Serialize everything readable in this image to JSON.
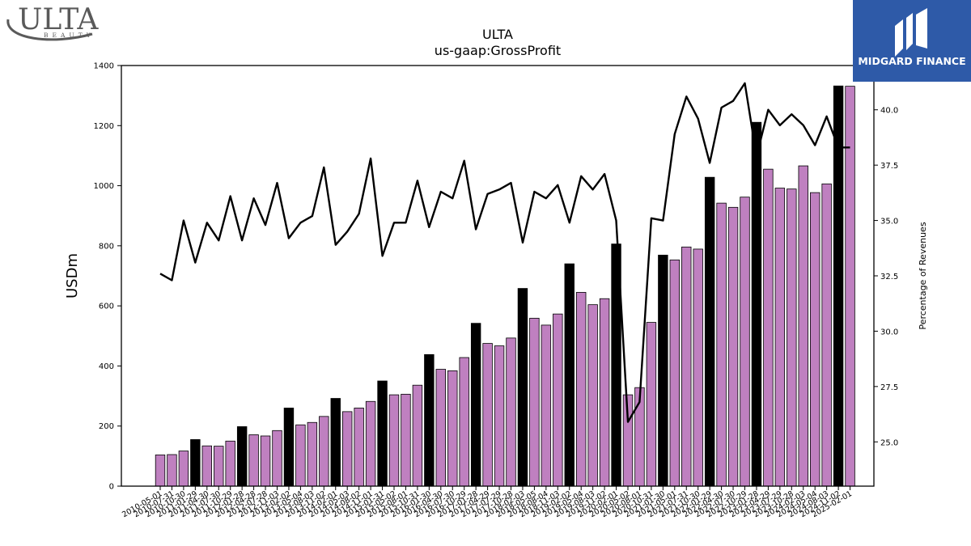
{
  "logos": {
    "left": {
      "brand": "ULTA",
      "sub": "BEAUTY",
      "color": "#5a5a5a"
    },
    "right": {
      "brand": "MIDGARD FINANCE",
      "bg": "#2e5aa8",
      "fg": "#ffffff"
    }
  },
  "chart_data": {
    "type": "bar",
    "title": "ULTA",
    "subtitle": "us-gaap:GrossProfit",
    "ylabel": "USDm",
    "y2label": "Percentage of Revenues",
    "ylim": [
      0,
      1400
    ],
    "y2lim": [
      23.0,
      42.0
    ],
    "yticks": [
      0,
      200,
      400,
      600,
      800,
      1000,
      1200,
      1400
    ],
    "y2ticks": [
      "25.0",
      "27.5",
      "30.0",
      "32.5",
      "35.0",
      "37.5",
      "40.0"
    ],
    "colors": {
      "bar": "#bf80c0",
      "bar_highlight": "#000000",
      "line": "#000000"
    },
    "categories": [
      "2010-05-01",
      "2010-07-31",
      "2010-10-30",
      "2011-01-29",
      "2011-04-30",
      "2011-07-30",
      "2011-10-29",
      "2012-01-28",
      "2012-04-28",
      "2012-07-28",
      "2012-11-03",
      "2013-02-02",
      "2013-05-04",
      "2013-08-03",
      "2013-11-02",
      "2014-02-01",
      "2014-05-03",
      "2014-08-02",
      "2014-11-01",
      "2015-01-31",
      "2015-05-02",
      "2015-08-01",
      "2015-10-31",
      "2016-01-30",
      "2016-04-30",
      "2016-07-30",
      "2016-10-29",
      "2017-01-28",
      "2017-04-29",
      "2017-07-29",
      "2017-10-28",
      "2018-02-03",
      "2018-05-05",
      "2018-08-04",
      "2018-11-03",
      "2019-02-02",
      "2019-05-04",
      "2019-08-03",
      "2019-11-02",
      "2020-02-01",
      "2020-05-02",
      "2020-08-01",
      "2020-10-31",
      "2021-01-30",
      "2021-05-01",
      "2021-07-31",
      "2021-10-30",
      "2022-01-29",
      "2022-04-30",
      "2022-07-30",
      "2022-10-29",
      "2023-01-28",
      "2023-04-29",
      "2023-07-29",
      "2023-10-28",
      "2024-02-03",
      "2024-05-04",
      "2024-08-03",
      "2024-11-02",
      "2025-02-01"
    ],
    "x_tick_labels": [
      "2010-05-01",
      "2010-07-31",
      "2010-10-30",
      "2011-01-29",
      "2011-04-30",
      "2011-07-30",
      "2011-10-29",
      "2012-01-28",
      "2012-04-28",
      "2012-07-28",
      "2012-11-03",
      "2013-02-02",
      "2013-05-04",
      "2013-08-03",
      "2013-11-02",
      "2014-02-01",
      "2014-05-03",
      "2014-08-02",
      "2014-11-01",
      "2015-01-31",
      "2015-05-02",
      "2015-08-01",
      "2015-10-31",
      "2016-01-30",
      "2016-04-30",
      "2016-07-30",
      "2016-10-29",
      "2017-01-28",
      "2017-04-29",
      "2017-07-29",
      "2017-10-28",
      "2018-02-03",
      "2018-05-05",
      "2018-08-04",
      "2018-11-03",
      "2019-02-02",
      "2019-05-04",
      "2019-08-03",
      "2019-11-02",
      "2020-02-01",
      "2020-05-02",
      "2020-08-01",
      "2020-10-31",
      "2021-01-30",
      "2021-05-01",
      "2021-07-31",
      "2021-10-30",
      "2022-01-29",
      "2022-04-30",
      "2022-07-30",
      "2022-10-29",
      "2023-01-28",
      "2023-04-29",
      "2023-07-29",
      "2023-10-28",
      "2024-02-03",
      "2024-05-04",
      "2024-08-03",
      "2024-11-02",
      "2025-02-01"
    ],
    "series": [
      {
        "axis": "left",
        "kind": "bar",
        "values": [
          104,
          105,
          117,
          155,
          134,
          133,
          150,
          198,
          171,
          167,
          185,
          260,
          204,
          212,
          232,
          292,
          248,
          260,
          282,
          350,
          304,
          306,
          336,
          438,
          389,
          384,
          428,
          542,
          475,
          467,
          493,
          658,
          559,
          536,
          573,
          740,
          645,
          604,
          624,
          806,
          304,
          328,
          545,
          769,
          753,
          796,
          789,
          1028,
          942,
          928,
          962,
          1211,
          1055,
          992,
          989,
          1066,
          977,
          1006,
          1332,
          1331
        ],
        "highlight_indices": [
          3,
          7,
          11,
          15,
          19,
          23,
          27,
          31,
          35,
          39,
          43,
          47,
          51,
          58
        ]
      },
      {
        "axis": "right",
        "kind": "line",
        "values": [
          32.6,
          32.3,
          35.0,
          33.1,
          34.9,
          34.1,
          36.1,
          34.1,
          36.0,
          34.8,
          36.7,
          34.2,
          34.9,
          35.2,
          37.4,
          33.9,
          34.5,
          35.3,
          37.8,
          33.4,
          34.9,
          34.9,
          36.8,
          34.7,
          36.3,
          36.0,
          37.7,
          34.6,
          36.2,
          36.4,
          36.7,
          34.0,
          36.3,
          36.0,
          36.6,
          34.9,
          37.0,
          36.4,
          37.1,
          35.0,
          25.9,
          26.8,
          35.1,
          35.0,
          38.9,
          40.6,
          39.6,
          37.6,
          40.1,
          40.4,
          41.2,
          37.9,
          40.0,
          39.3,
          39.8,
          39.3,
          38.4,
          39.7,
          38.3,
          38.3
        ]
      }
    ]
  }
}
